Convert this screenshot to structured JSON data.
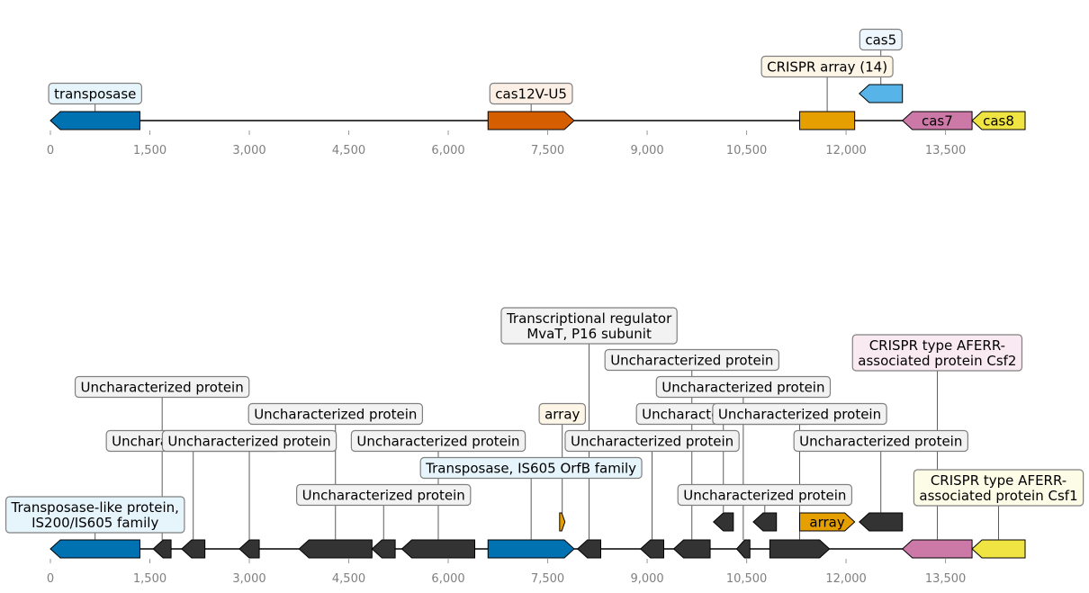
{
  "colors": {
    "transposase": "#0072B2",
    "effector": "#D55E00",
    "array": "#E69F00",
    "cas5": "#56B4E9",
    "cas7": "#CC79A7",
    "cas8": "#F0E442",
    "other": "#333333",
    "axis_tick_text": "#808080"
  },
  "axis": {
    "min": 0,
    "max": 14700,
    "ticks": [
      0,
      1500,
      3000,
      4500,
      6000,
      7500,
      9000,
      10500,
      12000,
      13500
    ],
    "tick_labels": [
      "0",
      "1,500",
      "3,000",
      "4,500",
      "6,000",
      "7,500",
      "9,000",
      "10,500",
      "12,000",
      "13,500"
    ]
  },
  "tracks": [
    {
      "features": [
        {
          "start": 0,
          "end": 1350,
          "strand": -1,
          "color": "transposase",
          "label": "transposase",
          "label_level": 0,
          "label_bg": "#e6f4fc"
        },
        {
          "start": 6600,
          "end": 7900,
          "strand": 1,
          "color": "effector",
          "label": "cas12V-U5",
          "label_level": 0,
          "label_bg": "#fcefe6"
        },
        {
          "start": 11300,
          "end": 12130,
          "strand": 0,
          "color": "array",
          "label": "CRISPR array (14)",
          "label_level": 1,
          "label_bg": "#fdf5e6",
          "row": 0
        },
        {
          "start": 12200,
          "end": 12850,
          "strand": -1,
          "color": "cas5",
          "label": "cas5",
          "label_level": 2,
          "label_bg": "#eef7fd",
          "row": 1
        },
        {
          "start": 12850,
          "end": 13900,
          "strand": -1,
          "color": "cas7",
          "label": "cas7",
          "label_inline": true
        },
        {
          "start": 13900,
          "end": 14700,
          "strand": -1,
          "color": "cas8",
          "label": "cas8",
          "label_inline": true
        }
      ]
    },
    {
      "features": [
        {
          "start": 0,
          "end": 1350,
          "strand": -1,
          "color": "transposase",
          "label": "Transposase-like protein,\nIS200/IS605 family",
          "label_level": 0,
          "label_bg": "#e6f4fc"
        },
        {
          "start": 1550,
          "end": 1820,
          "strand": -1,
          "color": "other",
          "label": "Uncharacterized protein",
          "label_level": 5,
          "label_bg": "#f2f2f2"
        },
        {
          "start": 1980,
          "end": 2330,
          "strand": -1,
          "color": "other",
          "label": "Uncharacterized protein",
          "label_level": 3,
          "label_bg": "#f2f2f2"
        },
        {
          "start": 2850,
          "end": 3150,
          "strand": -1,
          "color": "other",
          "label": "Uncharacterized protein",
          "label_level": 3,
          "label_bg": "#f2f2f2"
        },
        {
          "start": 3750,
          "end": 4850,
          "strand": -1,
          "color": "other",
          "label": "Uncharacterized protein",
          "label_level": 4,
          "label_bg": "#f2f2f2"
        },
        {
          "start": 4850,
          "end": 5200,
          "strand": -1,
          "color": "other",
          "label": "Uncharacterized protein",
          "label_level": 1,
          "label_bg": "#f2f2f2"
        },
        {
          "start": 5300,
          "end": 6400,
          "strand": -1,
          "color": "other",
          "label": "Uncharacterized protein",
          "label_level": 3,
          "label_bg": "#f2f2f2"
        },
        {
          "start": 6600,
          "end": 7900,
          "strand": 1,
          "color": "transposase",
          "label": "Transposase, IS605 OrfB family",
          "label_level": 2,
          "label_bg": "#e6f4fc"
        },
        {
          "start": 7680,
          "end": 7760,
          "strand": 1,
          "color": "array",
          "label": "array",
          "label_level": 4,
          "label_bg": "#fdf5e6",
          "row": 1
        },
        {
          "start": 7950,
          "end": 8300,
          "strand": -1,
          "color": "other",
          "label": "Transcriptional regulator\nMvaT, P16 subunit",
          "label_level": 7,
          "label_bg": "#f2f2f2"
        },
        {
          "start": 8900,
          "end": 9250,
          "strand": -1,
          "color": "other",
          "label": "Uncharacterized protein",
          "label_level": 3,
          "label_bg": "#f2f2f2"
        },
        {
          "start": 9400,
          "end": 9950,
          "strand": -1,
          "color": "other",
          "label": "Uncharacterized protein",
          "label_level": 6,
          "label_bg": "#f2f2f2"
        },
        {
          "start": 10000,
          "end": 10300,
          "strand": -1,
          "color": "other",
          "label": "Uncharacterized protein",
          "label_level": 4,
          "label_bg": "#f2f2f2",
          "row": 1
        },
        {
          "start": 10350,
          "end": 10550,
          "strand": -1,
          "color": "other",
          "label": "Uncharacterized protein",
          "label_level": 5,
          "label_bg": "#f2f2f2"
        },
        {
          "start": 10600,
          "end": 10950,
          "strand": -1,
          "color": "other",
          "label": "Uncharacterized protein",
          "label_level": 1,
          "label_bg": "#f2f2f2",
          "row": 1
        },
        {
          "start": 10850,
          "end": 11750,
          "strand": 1,
          "color": "other",
          "label": "Uncharacterized protein",
          "label_level": 4,
          "label_bg": "#f2f2f2"
        },
        {
          "start": 11300,
          "end": 12130,
          "strand": 1,
          "color": "array",
          "label": "array",
          "label_inline": true,
          "row": 1
        },
        {
          "start": 12200,
          "end": 12850,
          "strand": -1,
          "color": "other",
          "label": "Uncharacterized protein",
          "label_level": 3,
          "label_bg": "#f2f2f2",
          "row": 1
        },
        {
          "start": 12850,
          "end": 13900,
          "strand": -1,
          "color": "cas7",
          "label": "CRISPR type AFERR-\nassociated protein Csf2",
          "label_level": 6,
          "label_bg": "#f9eaf2"
        },
        {
          "start": 13900,
          "end": 14700,
          "strand": -1,
          "color": "cas8",
          "label": "CRISPR type AFERR-\nassociated protein Csf1",
          "label_level": 1,
          "label_bg": "#fdfce6"
        }
      ]
    }
  ]
}
